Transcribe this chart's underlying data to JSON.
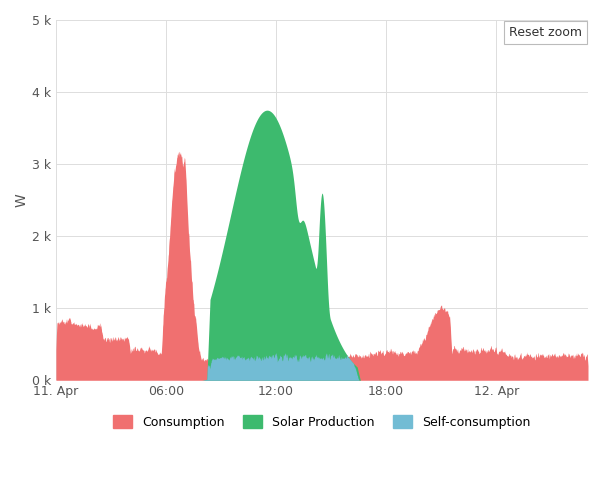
{
  "ylabel": "W",
  "ylim": [
    0,
    5000
  ],
  "ytick_labels": [
    "0 k",
    "1 k",
    "2 k",
    "3 k",
    "4 k",
    "5 k"
  ],
  "xtick_labels": [
    "11. Apr",
    "06:00",
    "12:00",
    "18:00",
    "12. Apr"
  ],
  "xtick_positions": [
    0,
    6,
    12,
    18,
    24
  ],
  "xlim": [
    0,
    29
  ],
  "bg_color": "#ffffff",
  "grid_color": "#dddddd",
  "consumption_color": "#f07070",
  "solar_color": "#3dba6e",
  "self_color": "#72bcd4",
  "legend_labels": [
    "Consumption",
    "Solar Production",
    "Self-consumption"
  ],
  "reset_zoom_text": "Reset zoom"
}
